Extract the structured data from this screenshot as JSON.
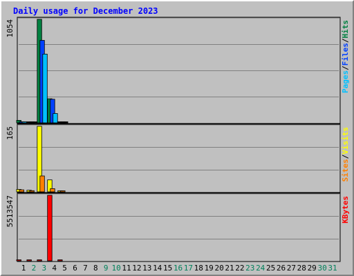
{
  "chart_data": {
    "type": "bar",
    "title": "Daily usage for December 2023",
    "days": [
      "1",
      "2",
      "3",
      "4",
      "5",
      "6",
      "7",
      "8",
      "9",
      "10",
      "11",
      "12",
      "13",
      "14",
      "15",
      "16",
      "17",
      "18",
      "19",
      "20",
      "21",
      "22",
      "23",
      "24",
      "25",
      "26",
      "27",
      "28",
      "29",
      "30",
      "31"
    ],
    "weekend_days": [
      "2",
      "3",
      "9",
      "10",
      "16",
      "17",
      "23",
      "24",
      "30",
      "31"
    ],
    "panels": [
      {
        "name": "hits-files-pages",
        "max_label": "1054",
        "ymax": 1054,
        "series": [
          {
            "name": "Hits",
            "color": "#008040",
            "values": [
              25,
              0,
              1054,
              245,
              0
            ]
          },
          {
            "name": "Files",
            "color": "#0040ff",
            "values": [
              6,
              0,
              840,
              240,
              0
            ]
          },
          {
            "name": "Pages",
            "color": "#00c0ff",
            "values": [
              3,
              0,
              700,
              95,
              0
            ]
          }
        ],
        "legend": [
          {
            "label": "Pages",
            "color": "#00c0ff"
          },
          {
            "label": "/",
            "color": "#000000"
          },
          {
            "label": "Files",
            "color": "#0040ff"
          },
          {
            "label": "/",
            "color": "#000000"
          },
          {
            "label": "Hits",
            "color": "#008040"
          }
        ]
      },
      {
        "name": "visits-sites",
        "max_label": "165",
        "ymax": 165,
        "series": [
          {
            "name": "Visits",
            "color": "#ffff00",
            "values": [
              6,
              4,
              165,
              30,
              1
            ]
          },
          {
            "name": "Sites",
            "color": "#ff8000",
            "values": [
              5,
              3,
              40,
              8,
              1
            ]
          }
        ],
        "legend": [
          {
            "label": "Sites",
            "color": "#ff8000"
          },
          {
            "label": "/",
            "color": "#000000"
          },
          {
            "label": "Visits",
            "color": "#ffff00"
          }
        ]
      },
      {
        "name": "kbytes",
        "max_label": "5513547",
        "ymax": 5513547,
        "series": [
          {
            "name": "KBytes",
            "color": "#ff0000",
            "values": [
              20000,
              15000,
              80000,
              5513547,
              5000
            ]
          }
        ],
        "legend": [
          {
            "label": "KBytes",
            "color": "#ff0000"
          }
        ]
      }
    ]
  },
  "colors": {
    "title": "#0000ff",
    "weekday_label": "#000000",
    "weekend_label": "#00805a",
    "grid": "#808080",
    "panel_bg": "#c0c0c0"
  }
}
